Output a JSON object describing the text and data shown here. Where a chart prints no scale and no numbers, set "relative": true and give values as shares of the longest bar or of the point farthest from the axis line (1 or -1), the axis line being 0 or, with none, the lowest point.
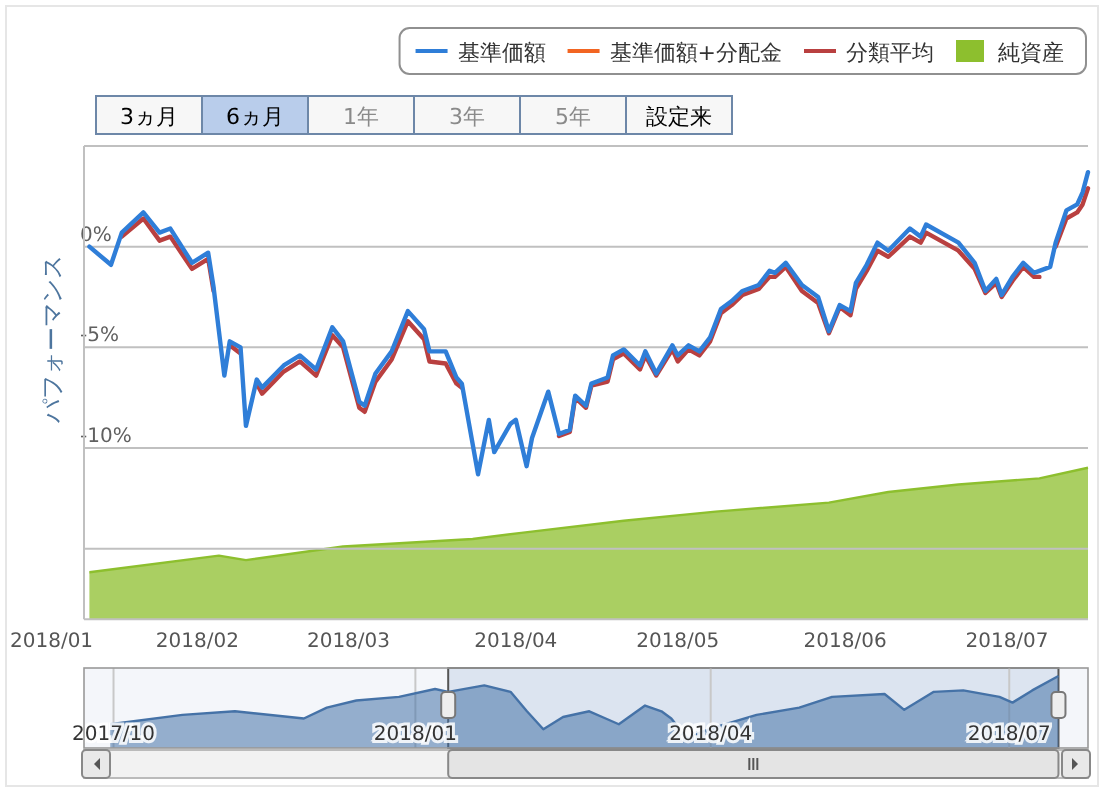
{
  "chart_data": [
    {
      "type": "line",
      "ylabel": "パフォーマンス",
      "legend": "top right",
      "grid": "y",
      "line_style": "solid",
      "marker": "none",
      "annotations": [
        "3ヵ月",
        "6ヵ月",
        "1年",
        "3年",
        "5年",
        "設定来",
        "2018/01"
      ],
      "xlim": [
        "2018-01-11",
        "2018-07-16"
      ],
      "xticks": [
        {
          "value": "2018-02-01",
          "label": "2018/02"
        },
        {
          "value": "2018-03-01",
          "label": "2018/03"
        },
        {
          "value": "2018-04-01",
          "label": "2018/04"
        },
        {
          "value": "2018-05-01",
          "label": "2018/05"
        },
        {
          "value": "2018-06-01",
          "label": "2018/06"
        },
        {
          "value": "2018-07-01",
          "label": "2018/07"
        }
      ],
      "ylim": [
        -18.5,
        5
      ],
      "yticks": [
        {
          "value": 5,
          "label": null
        },
        {
          "value": 0,
          "label": "0%"
        },
        {
          "value": -5,
          "label": "-5%"
        },
        {
          "value": -10,
          "label": "-10%"
        },
        {
          "value": -15,
          "label": null
        }
      ],
      "x": [
        "2018-01-12",
        "2018-01-16",
        "2018-01-18",
        "2018-01-22",
        "2018-01-25",
        "2018-01-27",
        "2018-01-31",
        "2018-02-03",
        "2018-02-04",
        "2018-02-06",
        "2018-02-07",
        "2018-02-09",
        "2018-02-10",
        "2018-02-12",
        "2018-02-13",
        "2018-02-17",
        "2018-02-20",
        "2018-02-23",
        "2018-02-26",
        "2018-02-28",
        "2018-03-03",
        "2018-03-04",
        "2018-03-06",
        "2018-03-09",
        "2018-03-12",
        "2018-03-15",
        "2018-03-16",
        "2018-03-19",
        "2018-03-21",
        "2018-03-22",
        "2018-03-25",
        "2018-03-27",
        "2018-03-28",
        "2018-03-31",
        "2018-04-01",
        "2018-04-03",
        "2018-04-04",
        "2018-04-07",
        "2018-04-09",
        "2018-04-11",
        "2018-04-12",
        "2018-04-14",
        "2018-04-15",
        "2018-04-18",
        "2018-04-19",
        "2018-04-21",
        "2018-04-24",
        "2018-04-25",
        "2018-04-27",
        "2018-04-30",
        "2018-05-01",
        "2018-05-03",
        "2018-05-05",
        "2018-05-07",
        "2018-05-09",
        "2018-05-11",
        "2018-05-13",
        "2018-05-16",
        "2018-05-18",
        "2018-05-19",
        "2018-05-21",
        "2018-05-24",
        "2018-05-27",
        "2018-05-29",
        "2018-05-31",
        "2018-06-02",
        "2018-06-03",
        "2018-06-05",
        "2018-06-07",
        "2018-06-09",
        "2018-06-13",
        "2018-06-15",
        "2018-06-16",
        "2018-06-22",
        "2018-06-25",
        "2018-06-27",
        "2018-06-29",
        "2018-06-30",
        "2018-07-02",
        "2018-07-04",
        "2018-07-06",
        "2018-07-07",
        "2018-07-09",
        "2018-07-10",
        "2018-07-12",
        "2018-07-14",
        "2018-07-15",
        "2018-07-16"
      ],
      "series": [
        {
          "name": "基準価額",
          "type": "line",
          "color": "#2f7ed8",
          "values": [
            0.0,
            -0.9,
            0.7,
            1.7,
            0.7,
            0.9,
            -0.8,
            -0.3,
            -2.0,
            -6.4,
            -4.7,
            -5.0,
            -8.9,
            -6.6,
            -7.0,
            -5.9,
            -5.4,
            -6.1,
            -4.0,
            -4.7,
            -7.7,
            -7.9,
            -6.3,
            -5.2,
            -3.2,
            -4.1,
            -5.2,
            -5.2,
            -6.5,
            -6.8,
            -11.3,
            -8.6,
            -10.2,
            -8.8,
            -8.6,
            -10.9,
            -9.5,
            -7.2,
            -9.3,
            -9.1,
            -7.4,
            -7.9,
            -6.8,
            -6.5,
            -5.4,
            -5.1,
            -5.9,
            -5.2,
            -6.3,
            -4.9,
            -5.4,
            -4.9,
            -5.2,
            -4.5,
            -3.1,
            -2.7,
            -2.2,
            -1.9,
            -1.2,
            -1.3,
            -0.8,
            -1.9,
            -2.5,
            -4.2,
            -2.9,
            -3.2,
            -1.8,
            -0.9,
            0.2,
            -0.2,
            0.9,
            0.5,
            1.1,
            0.2,
            -0.8,
            -2.2,
            -1.6,
            -2.4,
            -1.5,
            -0.8,
            -1.3,
            -1.2,
            -1.0,
            0.2,
            1.8,
            2.1,
            2.7,
            3.7
          ]
        },
        {
          "name": "基準価額+分配金",
          "type": "line",
          "color": "#f26522",
          "values": [
            null,
            null,
            null,
            null,
            null,
            null,
            null,
            null,
            null,
            null,
            null,
            null,
            null,
            null,
            null,
            null,
            null,
            null,
            null,
            null,
            null,
            null,
            null,
            null,
            null,
            null,
            null,
            null,
            null,
            null,
            null,
            null,
            null,
            null,
            null,
            null,
            null,
            null,
            null,
            null,
            null,
            null,
            null,
            null,
            null,
            null,
            null,
            null,
            null,
            null,
            null,
            null,
            null,
            null,
            null,
            null,
            null,
            null,
            null,
            null,
            null,
            null,
            null,
            null,
            null,
            null,
            null,
            null,
            null,
            null,
            null,
            null,
            null,
            null,
            null,
            null,
            null,
            null,
            null,
            null,
            null,
            null,
            null,
            null,
            null,
            null,
            null,
            null
          ]
        },
        {
          "name": "分類平均",
          "type": "line",
          "color": "#b94040",
          "values": [
            null,
            null,
            0.5,
            1.4,
            0.3,
            0.5,
            -1.1,
            -0.6,
            -2.2,
            null,
            -4.9,
            -5.3,
            null,
            -6.8,
            -7.3,
            -6.2,
            -5.7,
            -6.4,
            -4.4,
            -5.0,
            -8.0,
            -8.2,
            -6.7,
            -5.6,
            -3.7,
            -4.6,
            -5.7,
            -5.8,
            -6.8,
            -7.0,
            null,
            null,
            null,
            null,
            null,
            null,
            null,
            null,
            -9.4,
            -9.2,
            -7.5,
            -8.0,
            -6.9,
            -6.7,
            -5.6,
            -5.3,
            -6.1,
            -5.4,
            -6.4,
            -5.1,
            -5.7,
            -5.1,
            -5.4,
            -4.7,
            -3.3,
            -2.9,
            -2.4,
            -2.1,
            -1.5,
            -1.5,
            -1.0,
            -2.2,
            -2.8,
            -4.3,
            -3.0,
            -3.4,
            -2.1,
            -1.2,
            -0.2,
            -0.5,
            0.5,
            0.2,
            0.7,
            -0.2,
            -1.1,
            -2.3,
            -1.8,
            -2.5,
            -1.7,
            -1.0,
            -1.5,
            -1.5,
            null,
            0.0,
            1.4,
            1.7,
            2.1,
            2.9
          ]
        }
      ]
    },
    {
      "type": "area",
      "relative": true,
      "tick_labels": false,
      "xlim": [
        "2018-01-11",
        "2018-07-16"
      ],
      "x": [
        "2018-01-12",
        "2018-02-05",
        "2018-02-10",
        "2018-02-28",
        "2018-03-24",
        "2018-04-02",
        "2018-04-21",
        "2018-05-08",
        "2018-05-29",
        "2018-06-09",
        "2018-06-22",
        "2018-07-07",
        "2018-07-16"
      ],
      "series": [
        {
          "name": "純資産",
          "color": "#8dbf2e",
          "values": [
            0.31,
            0.42,
            0.39,
            0.48,
            0.53,
            0.57,
            0.65,
            0.71,
            0.77,
            0.84,
            0.89,
            0.93,
            1
          ]
        }
      ]
    },
    {
      "type": "area",
      "relative": true,
      "grid": "x",
      "tick_labels": "x",
      "color": "#4572a7",
      "xlim": [
        "2017-09-22",
        "2018-07-25"
      ],
      "xticks": [
        {
          "value": "2017-10-01",
          "label": "2017/10"
        },
        {
          "value": "2018-01-01",
          "label": "2018/01"
        },
        {
          "value": "2018-04-01",
          "label": "2018/04"
        },
        {
          "value": "2018-07-01",
          "label": "2018/07"
        }
      ],
      "bands": [
        {
          "axis": "x",
          "from": "2018-01-11",
          "to": "2018-07-16",
          "color": "#b0c4de"
        }
      ],
      "x": [
        "2017-09-30",
        "2017-10-22",
        "2017-11-07",
        "2017-11-28",
        "2017-12-05",
        "2017-12-14",
        "2017-12-27",
        "2018-01-07",
        "2018-01-11",
        "2018-01-22",
        "2018-01-30",
        "2018-02-04",
        "2018-02-09",
        "2018-02-15",
        "2018-02-23",
        "2018-02-28",
        "2018-03-04",
        "2018-03-12",
        "2018-03-17",
        "2018-03-20",
        "2018-03-25",
        "2018-03-29",
        "2018-04-04",
        "2018-04-15",
        "2018-04-28",
        "2018-05-08",
        "2018-05-24",
        "2018-05-30",
        "2018-06-08",
        "2018-06-17",
        "2018-06-28",
        "2018-07-02",
        "2018-07-08",
        "2018-07-16"
      ],
      "values": [
        0.33,
        0.46,
        0.51,
        0.41,
        0.56,
        0.66,
        0.71,
        0.82,
        0.78,
        0.87,
        0.78,
        0.51,
        0.26,
        0.43,
        0.51,
        0.41,
        0.33,
        0.59,
        0.51,
        0.41,
        0.12,
        0.22,
        0.31,
        0.46,
        0.56,
        0.71,
        0.75,
        0.53,
        0.78,
        0.8,
        0.71,
        0.63,
        0.8,
        1
      ]
    }
  ]
}
